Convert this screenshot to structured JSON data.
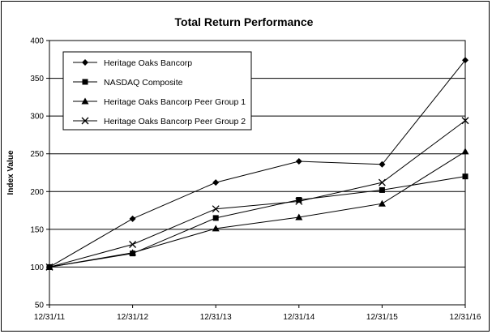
{
  "chart_data": {
    "type": "line",
    "title": "Total Return Performance",
    "xlabel": "",
    "ylabel": "Index Value",
    "categories": [
      "12/31/11",
      "12/31/12",
      "12/31/13",
      "12/31/14",
      "12/31/15",
      "12/31/16"
    ],
    "ylim": [
      50,
      400
    ],
    "yticks": [
      50,
      100,
      150,
      200,
      250,
      300,
      350,
      400
    ],
    "grid": true,
    "legend_position": "top-left",
    "series": [
      {
        "name": "Heritage Oaks Bancorp",
        "marker": "diamond",
        "values": [
          100,
          164,
          212,
          240,
          236,
          374
        ]
      },
      {
        "name": "NASDAQ Composite",
        "marker": "square",
        "values": [
          100,
          118,
          165,
          189,
          202,
          220
        ]
      },
      {
        "name": "Heritage Oaks Bancorp Peer Group 1",
        "marker": "triangle",
        "values": [
          100,
          119,
          151,
          166,
          184,
          253
        ]
      },
      {
        "name": "Heritage Oaks Bancorp Peer Group 2",
        "marker": "x",
        "values": [
          100,
          130,
          177,
          187,
          212,
          294
        ]
      }
    ],
    "colors": {
      "line": "#000000",
      "grid": "#000000",
      "background": "#ffffff"
    }
  }
}
